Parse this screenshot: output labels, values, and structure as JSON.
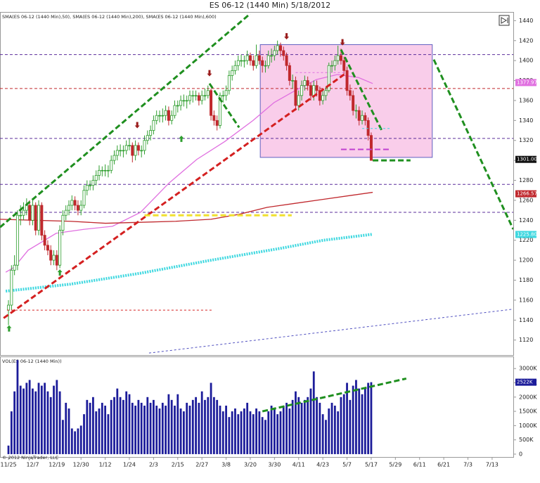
{
  "chart_data": {
    "type": "candlestick",
    "title": "ES 06-12 (1440 Min)  5/18/2012",
    "indicator_label": "SMA(ES 06-12 (1440 Min),50), SMA(ES 06-12 (1440 Min),200), SMA(ES 06-12 (1440 Min),600)",
    "footer": "© 2012 NinjaTrader, LLC",
    "xlim": [
      -2.8,
      167
    ],
    "xticks": [
      {
        "value": 0,
        "label": "11/25"
      },
      {
        "value": 8,
        "label": "12/7"
      },
      {
        "value": 16,
        "label": "12/19"
      },
      {
        "value": 24,
        "label": "12/30"
      },
      {
        "value": 32,
        "label": "1/12"
      },
      {
        "value": 40,
        "label": "1/24"
      },
      {
        "value": 48,
        "label": "2/3"
      },
      {
        "value": 56,
        "label": "2/15"
      },
      {
        "value": 64,
        "label": "2/27"
      },
      {
        "value": 72,
        "label": "3/8"
      },
      {
        "value": 80,
        "label": "3/20"
      },
      {
        "value": 88,
        "label": "3/30"
      },
      {
        "value": 96,
        "label": "4/11"
      },
      {
        "value": 104,
        "label": "4/23"
      },
      {
        "value": 112,
        "label": "5/7"
      },
      {
        "value": 120,
        "label": "5/17"
      },
      {
        "value": 128,
        "label": "5/29"
      },
      {
        "value": 136,
        "label": "6/11"
      },
      {
        "value": 144,
        "label": "6/21"
      },
      {
        "value": 152,
        "label": "7/3"
      },
      {
        "value": 160,
        "label": "7/13"
      }
    ],
    "ylim": [
      1105,
      1448
    ],
    "yticks": [
      1120,
      1140,
      1160,
      1180,
      1200,
      1220,
      1240,
      1260,
      1280,
      1300,
      1320,
      1340,
      1360,
      1380,
      1400,
      1420,
      1440
    ],
    "up_color": "#2e9e2e",
    "down_color": "#c0282d",
    "ohlc": [
      [
        1150,
        1160,
        1135,
        1155
      ],
      [
        1155,
        1195,
        1150,
        1190
      ],
      [
        1190,
        1205,
        1185,
        1195
      ],
      [
        1195,
        1250,
        1190,
        1245
      ],
      [
        1245,
        1255,
        1235,
        1245
      ],
      [
        1245,
        1258,
        1240,
        1250
      ],
      [
        1250,
        1262,
        1245,
        1255
      ],
      [
        1255,
        1260,
        1235,
        1240
      ],
      [
        1240,
        1260,
        1235,
        1255
      ],
      [
        1255,
        1258,
        1225,
        1230
      ],
      [
        1230,
        1260,
        1225,
        1255
      ],
      [
        1255,
        1258,
        1220,
        1225
      ],
      [
        1225,
        1230,
        1210,
        1215
      ],
      [
        1215,
        1220,
        1205,
        1210
      ],
      [
        1210,
        1215,
        1195,
        1200
      ],
      [
        1200,
        1210,
        1195,
        1205
      ],
      [
        1205,
        1210,
        1190,
        1195
      ],
      [
        1195,
        1235,
        1192,
        1230
      ],
      [
        1230,
        1250,
        1225,
        1245
      ],
      [
        1245,
        1255,
        1240,
        1250
      ],
      [
        1250,
        1260,
        1245,
        1255
      ],
      [
        1255,
        1265,
        1250,
        1260
      ],
      [
        1260,
        1264,
        1250,
        1255
      ],
      [
        1255,
        1260,
        1245,
        1250
      ],
      [
        1250,
        1260,
        1245,
        1255
      ],
      [
        1255,
        1275,
        1252,
        1270
      ],
      [
        1270,
        1280,
        1265,
        1275
      ],
      [
        1275,
        1280,
        1270,
        1275
      ],
      [
        1275,
        1285,
        1270,
        1280
      ],
      [
        1280,
        1290,
        1275,
        1285
      ],
      [
        1285,
        1295,
        1280,
        1290
      ],
      [
        1290,
        1294,
        1284,
        1290
      ],
      [
        1290,
        1296,
        1284,
        1290
      ],
      [
        1290,
        1295,
        1283,
        1290
      ],
      [
        1290,
        1305,
        1287,
        1300
      ],
      [
        1300,
        1310,
        1296,
        1305
      ],
      [
        1305,
        1315,
        1300,
        1310
      ],
      [
        1310,
        1316,
        1304,
        1310
      ],
      [
        1310,
        1315,
        1303,
        1310
      ],
      [
        1310,
        1320,
        1306,
        1315
      ],
      [
        1315,
        1322,
        1310,
        1315
      ],
      [
        1315,
        1318,
        1298,
        1305
      ],
      [
        1305,
        1320,
        1300,
        1315
      ],
      [
        1315,
        1318,
        1305,
        1310
      ],
      [
        1310,
        1315,
        1303,
        1310
      ],
      [
        1310,
        1325,
        1306,
        1320
      ],
      [
        1320,
        1330,
        1316,
        1325
      ],
      [
        1325,
        1335,
        1320,
        1330
      ],
      [
        1330,
        1345,
        1326,
        1340
      ],
      [
        1340,
        1350,
        1336,
        1345
      ],
      [
        1345,
        1350,
        1338,
        1345
      ],
      [
        1345,
        1352,
        1338,
        1345
      ],
      [
        1345,
        1355,
        1340,
        1350
      ],
      [
        1350,
        1354,
        1335,
        1340
      ],
      [
        1340,
        1350,
        1336,
        1345
      ],
      [
        1345,
        1360,
        1342,
        1355
      ],
      [
        1355,
        1360,
        1348,
        1355
      ],
      [
        1355,
        1365,
        1350,
        1360
      ],
      [
        1360,
        1366,
        1354,
        1360
      ],
      [
        1360,
        1365,
        1352,
        1360
      ],
      [
        1360,
        1370,
        1356,
        1365
      ],
      [
        1365,
        1370,
        1358,
        1365
      ],
      [
        1365,
        1370,
        1360,
        1365
      ],
      [
        1365,
        1368,
        1355,
        1360
      ],
      [
        1360,
        1370,
        1356,
        1365
      ],
      [
        1365,
        1372,
        1360,
        1365
      ],
      [
        1365,
        1375,
        1362,
        1370
      ],
      [
        1370,
        1372,
        1340,
        1345
      ],
      [
        1345,
        1350,
        1335,
        1340
      ],
      [
        1340,
        1345,
        1330,
        1335
      ],
      [
        1335,
        1368,
        1332,
        1365
      ],
      [
        1365,
        1370,
        1358,
        1365
      ],
      [
        1365,
        1375,
        1360,
        1370
      ],
      [
        1370,
        1390,
        1366,
        1385
      ],
      [
        1385,
        1395,
        1380,
        1390
      ],
      [
        1390,
        1400,
        1386,
        1395
      ],
      [
        1395,
        1405,
        1390,
        1400
      ],
      [
        1400,
        1406,
        1394,
        1400
      ],
      [
        1400,
        1405,
        1393,
        1400
      ],
      [
        1400,
        1410,
        1396,
        1405
      ],
      [
        1405,
        1408,
        1395,
        1400
      ],
      [
        1400,
        1405,
        1390,
        1395
      ],
      [
        1395,
        1416,
        1392,
        1405
      ],
      [
        1405,
        1410,
        1396,
        1400
      ],
      [
        1400,
        1404,
        1388,
        1395
      ],
      [
        1395,
        1400,
        1388,
        1395
      ],
      [
        1395,
        1410,
        1392,
        1405
      ],
      [
        1405,
        1412,
        1398,
        1405
      ],
      [
        1405,
        1415,
        1400,
        1410
      ],
      [
        1410,
        1420,
        1406,
        1415
      ],
      [
        1415,
        1418,
        1404,
        1410
      ],
      [
        1410,
        1414,
        1400,
        1405
      ],
      [
        1405,
        1408,
        1390,
        1395
      ],
      [
        1395,
        1398,
        1375,
        1380
      ],
      [
        1380,
        1386,
        1372,
        1380
      ],
      [
        1380,
        1384,
        1350,
        1355
      ],
      [
        1355,
        1370,
        1350,
        1365
      ],
      [
        1365,
        1380,
        1360,
        1375
      ],
      [
        1375,
        1385,
        1370,
        1380
      ],
      [
        1380,
        1384,
        1370,
        1375
      ],
      [
        1375,
        1378,
        1360,
        1365
      ],
      [
        1365,
        1380,
        1360,
        1375
      ],
      [
        1375,
        1380,
        1364,
        1370
      ],
      [
        1370,
        1374,
        1355,
        1360
      ],
      [
        1360,
        1370,
        1356,
        1365
      ],
      [
        1365,
        1374,
        1360,
        1370
      ],
      [
        1370,
        1398,
        1368,
        1395
      ],
      [
        1395,
        1400,
        1388,
        1395
      ],
      [
        1395,
        1405,
        1390,
        1400
      ],
      [
        1400,
        1415,
        1396,
        1405
      ],
      [
        1405,
        1412,
        1396,
        1400
      ],
      [
        1400,
        1404,
        1385,
        1390
      ],
      [
        1390,
        1394,
        1365,
        1370
      ],
      [
        1370,
        1376,
        1360,
        1365
      ],
      [
        1365,
        1370,
        1345,
        1350
      ],
      [
        1350,
        1356,
        1342,
        1350
      ],
      [
        1350,
        1354,
        1335,
        1340
      ],
      [
        1340,
        1350,
        1336,
        1345
      ],
      [
        1345,
        1348,
        1335,
        1340
      ],
      [
        1340,
        1343,
        1320,
        1325
      ],
      [
        1325,
        1328,
        1300,
        1300
      ]
    ],
    "overlays": [
      {
        "color": "#e070e0",
        "style": "solid",
        "x": [
          -0.9,
          1.9,
          6.5,
          15.8,
          25.1,
          34.4,
          43.7,
          53,
          62.3,
          71.6,
          80.9,
          87.9,
          94.9,
          101.9,
          108.8,
          115.8,
          120.5
        ],
        "values": [
          1188,
          1193,
          1210,
          1227,
          1231,
          1234,
          1248,
          1277,
          1301,
          1319,
          1340,
          1358,
          1370,
          1381,
          1386,
          1383,
          1377
        ]
      },
      {
        "color": "#c0282d",
        "style": "solid",
        "x": [
          -2.8,
          8.8,
          20.5,
          32.1,
          43.7,
          55.3,
          67,
          76.3,
          85.6,
          94.9,
          104.2,
          113.5,
          120.5
        ],
        "values": [
          1241,
          1240,
          1239,
          1237,
          1238,
          1239,
          1241,
          1246,
          1253,
          1257,
          1261,
          1265,
          1268
        ]
      },
      {
        "color": "#3fd8e0",
        "style": "dotted",
        "x": [
          -0.9,
          20.5,
          43.7,
          67,
          90.2,
          104.2,
          120.5
        ],
        "values": [
          1169,
          1176,
          1187,
          1200,
          1212,
          1220,
          1226
        ]
      }
    ],
    "hlines": [
      {
        "value": 1406,
        "color": "#5b2d9b"
      },
      {
        "value": 1372,
        "color": "#c0282d"
      },
      {
        "value": 1322,
        "color": "#5b2d9b"
      },
      {
        "value": 1276,
        "color": "#5b2d9b"
      },
      {
        "value": 1248,
        "color": "#5b2d9b"
      }
    ],
    "box": {
      "x": [
        83.3,
        140.2
      ],
      "values": [
        1303,
        1416
      ],
      "color": "#f9cdea"
    },
    "trendlines": [
      {
        "x": [
          -2.8,
          80
        ],
        "values": [
          1233,
          1447
        ],
        "color": "#1f8f1f",
        "width": 3
      },
      {
        "x": [
          66.5,
          76.3
        ],
        "values": [
          1377,
          1333
        ],
        "color": "#1f8f1f",
        "width": 3
      },
      {
        "x": [
          -1.6,
          111
        ],
        "values": [
          1142,
          1386
        ],
        "color": "#d42020",
        "width": 3
      },
      {
        "x": [
          110,
          123.5
        ],
        "values": [
          1411,
          1330
        ],
        "color": "#1f8f1f",
        "width": 3
      },
      {
        "x": [
          140.7,
          167
        ],
        "values": [
          1401,
          1231
        ],
        "color": "#1f8f1f",
        "width": 3
      },
      {
        "x": [
          120.5,
          133
        ],
        "values": [
          1300,
          1300
        ],
        "color": "#1f8f1f",
        "width": 3
      },
      {
        "x": [
          45,
          93.7
        ],
        "values": [
          1245,
          1245
        ],
        "color": "#f0e030",
        "width": 3
      },
      {
        "x": [
          -0.5,
          67.4
        ],
        "values": [
          1150,
          1150
        ],
        "color": "#d42020",
        "width": 1
      },
      {
        "x": [
          117,
          126.3
        ],
        "values": [
          1332,
          1332
        ],
        "color": "#3fd8e0",
        "width": 1
      },
      {
        "x": [
          110,
          126.3
        ],
        "values": [
          1311,
          1311
        ],
        "color": "#c040d0",
        "width": 2
      },
      {
        "x": [
          95,
          111
        ],
        "values": [
          1388,
          1388
        ],
        "color": "#e070e0",
        "width": 1
      },
      {
        "x": [
          46.5,
          167
        ],
        "values": [
          1107,
          1151
        ],
        "color": "#5050c0",
        "width": 1
      }
    ],
    "arrows": [
      {
        "x": 42.6,
        "value": 1335,
        "dir": "down"
      },
      {
        "x": 66.5,
        "value": 1387,
        "dir": "down"
      },
      {
        "x": 92,
        "value": 1424,
        "dir": "down"
      },
      {
        "x": 110.5,
        "value": 1418,
        "dir": "down"
      },
      {
        "x": 0.2,
        "value": 1132,
        "dir": "up"
      },
      {
        "x": 17,
        "value": 1188,
        "dir": "up"
      },
      {
        "x": 57.2,
        "value": 1322,
        "dir": "up"
      }
    ],
    "price_markers": [
      {
        "value": 1377.97,
        "label": "1377.97",
        "color": "#e070e0"
      },
      {
        "value": 1301,
        "label": "1301.00",
        "color": "#111111"
      },
      {
        "value": 1266.57,
        "label": "1266.57",
        "color": "#c0282d"
      },
      {
        "value": 1225.8,
        "label": "1225.80",
        "color": "#3fd8e0"
      }
    ],
    "volume": {
      "title": "VOL(ES 06-12 (1440 Min))",
      "color": "#1c1c9a",
      "ylim": [
        -100,
        3400
      ],
      "yticks": [
        0,
        {
          "value": 500,
          "label": "500K"
        },
        {
          "value": 1000,
          "label": "1000K"
        },
        {
          "value": 1500,
          "label": "1500K"
        },
        {
          "value": 2000,
          "label": "2000K"
        },
        {
          "value": 2500,
          "label": "2500K"
        },
        {
          "value": 3000,
          "label": "3000K"
        }
      ],
      "values": [
        300,
        1500,
        2200,
        3300,
        2400,
        2300,
        2500,
        2600,
        2300,
        2200,
        2500,
        2400,
        2500,
        2200,
        2000,
        2400,
        2600,
        2200,
        1200,
        1800,
        1600,
        900,
        800,
        900,
        1000,
        1400,
        1900,
        1800,
        2000,
        1500,
        1600,
        1800,
        1700,
        1400,
        1900,
        2000,
        2300,
        2000,
        1900,
        2200,
        2100,
        1800,
        1700,
        1900,
        1800,
        1700,
        2000,
        1800,
        1900,
        1700,
        1600,
        1800,
        1700,
        2100,
        1900,
        1700,
        2100,
        1600,
        1500,
        1800,
        1700,
        1900,
        2000,
        1800,
        2200,
        1900,
        2000,
        2500,
        2000,
        1900,
        1700,
        1500,
        1700,
        1300,
        1500,
        1600,
        1400,
        1500,
        1600,
        1800,
        1500,
        1400,
        1600,
        1500,
        1300,
        1200,
        1500,
        1700,
        1600,
        1400,
        1500,
        1700,
        1800,
        1600,
        1900,
        2200,
        2000,
        1800,
        1900,
        2000,
        2300,
        2900,
        2000,
        1800,
        1400,
        1200,
        1600,
        1800,
        1700,
        1500,
        2000,
        2100,
        2500,
        1900,
        2400,
        2600,
        2300,
        2100,
        2300,
        2500,
        2522
      ],
      "marker": {
        "value": 2522,
        "label": "2522K",
        "color": "#1c1c9a"
      },
      "trendline": {
        "x": [
          84,
          131.6
        ],
        "values": [
          1500,
          2650
        ],
        "color": "#1f8f1f"
      }
    }
  }
}
